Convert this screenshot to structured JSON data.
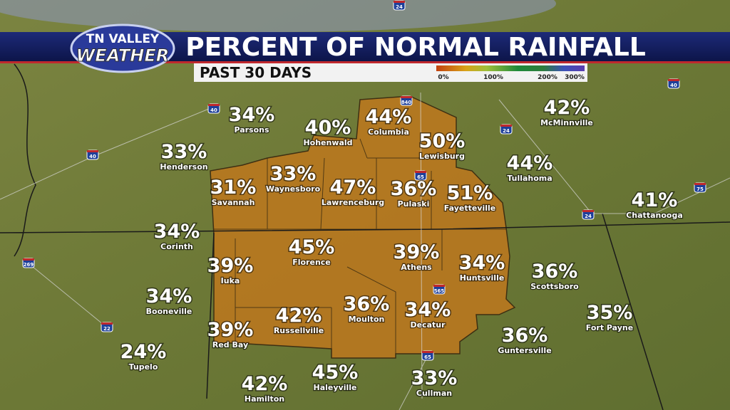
{
  "header": {
    "logo_line1": "TN VALLEY",
    "logo_line2": "WEATHER",
    "title": "PERCENT OF NORMAL RAINFALL",
    "subtitle": "PAST 30 DAYS"
  },
  "legend": {
    "ticks": [
      "0%",
      "100%",
      "200%",
      "300%"
    ]
  },
  "cities": [
    {
      "value": "34%",
      "name": "Parsons"
    },
    {
      "value": "40%",
      "name": "Hohenwald"
    },
    {
      "value": "44%",
      "name": "Columbia"
    },
    {
      "value": "50%",
      "name": "Lewisburg"
    },
    {
      "value": "42%",
      "name": "McMinnville"
    },
    {
      "value": "33%",
      "name": "Henderson"
    },
    {
      "value": "44%",
      "name": "Tullahoma"
    },
    {
      "value": "31%",
      "name": "Savannah"
    },
    {
      "value": "33%",
      "name": "Waynesboro"
    },
    {
      "value": "47%",
      "name": "Lawrenceburg"
    },
    {
      "value": "36%",
      "name": "Pulaski"
    },
    {
      "value": "51%",
      "name": "Fayetteville"
    },
    {
      "value": "41%",
      "name": "Chattanooga"
    },
    {
      "value": "34%",
      "name": "Corinth"
    },
    {
      "value": "45%",
      "name": "Florence"
    },
    {
      "value": "39%",
      "name": "Athens"
    },
    {
      "value": "34%",
      "name": "Huntsville"
    },
    {
      "value": "39%",
      "name": "Iuka"
    },
    {
      "value": "36%",
      "name": "Scottsboro"
    },
    {
      "value": "34%",
      "name": "Booneville"
    },
    {
      "value": "36%",
      "name": "Moulton"
    },
    {
      "value": "42%",
      "name": "Russellville"
    },
    {
      "value": "34%",
      "name": "Decatur"
    },
    {
      "value": "35%",
      "name": "Fort Payne"
    },
    {
      "value": "39%",
      "name": "Red Bay"
    },
    {
      "value": "36%",
      "name": "Guntersville"
    },
    {
      "value": "24%",
      "name": "Tupelo"
    },
    {
      "value": "45%",
      "name": "Haleyville"
    },
    {
      "value": "33%",
      "name": "Cullman"
    },
    {
      "value": "42%",
      "name": "Hamilton"
    }
  ],
  "highways": [
    "840",
    "40",
    "40",
    "24",
    "24",
    "65",
    "565",
    "65",
    "22",
    "269",
    "75",
    "40",
    "24"
  ]
}
